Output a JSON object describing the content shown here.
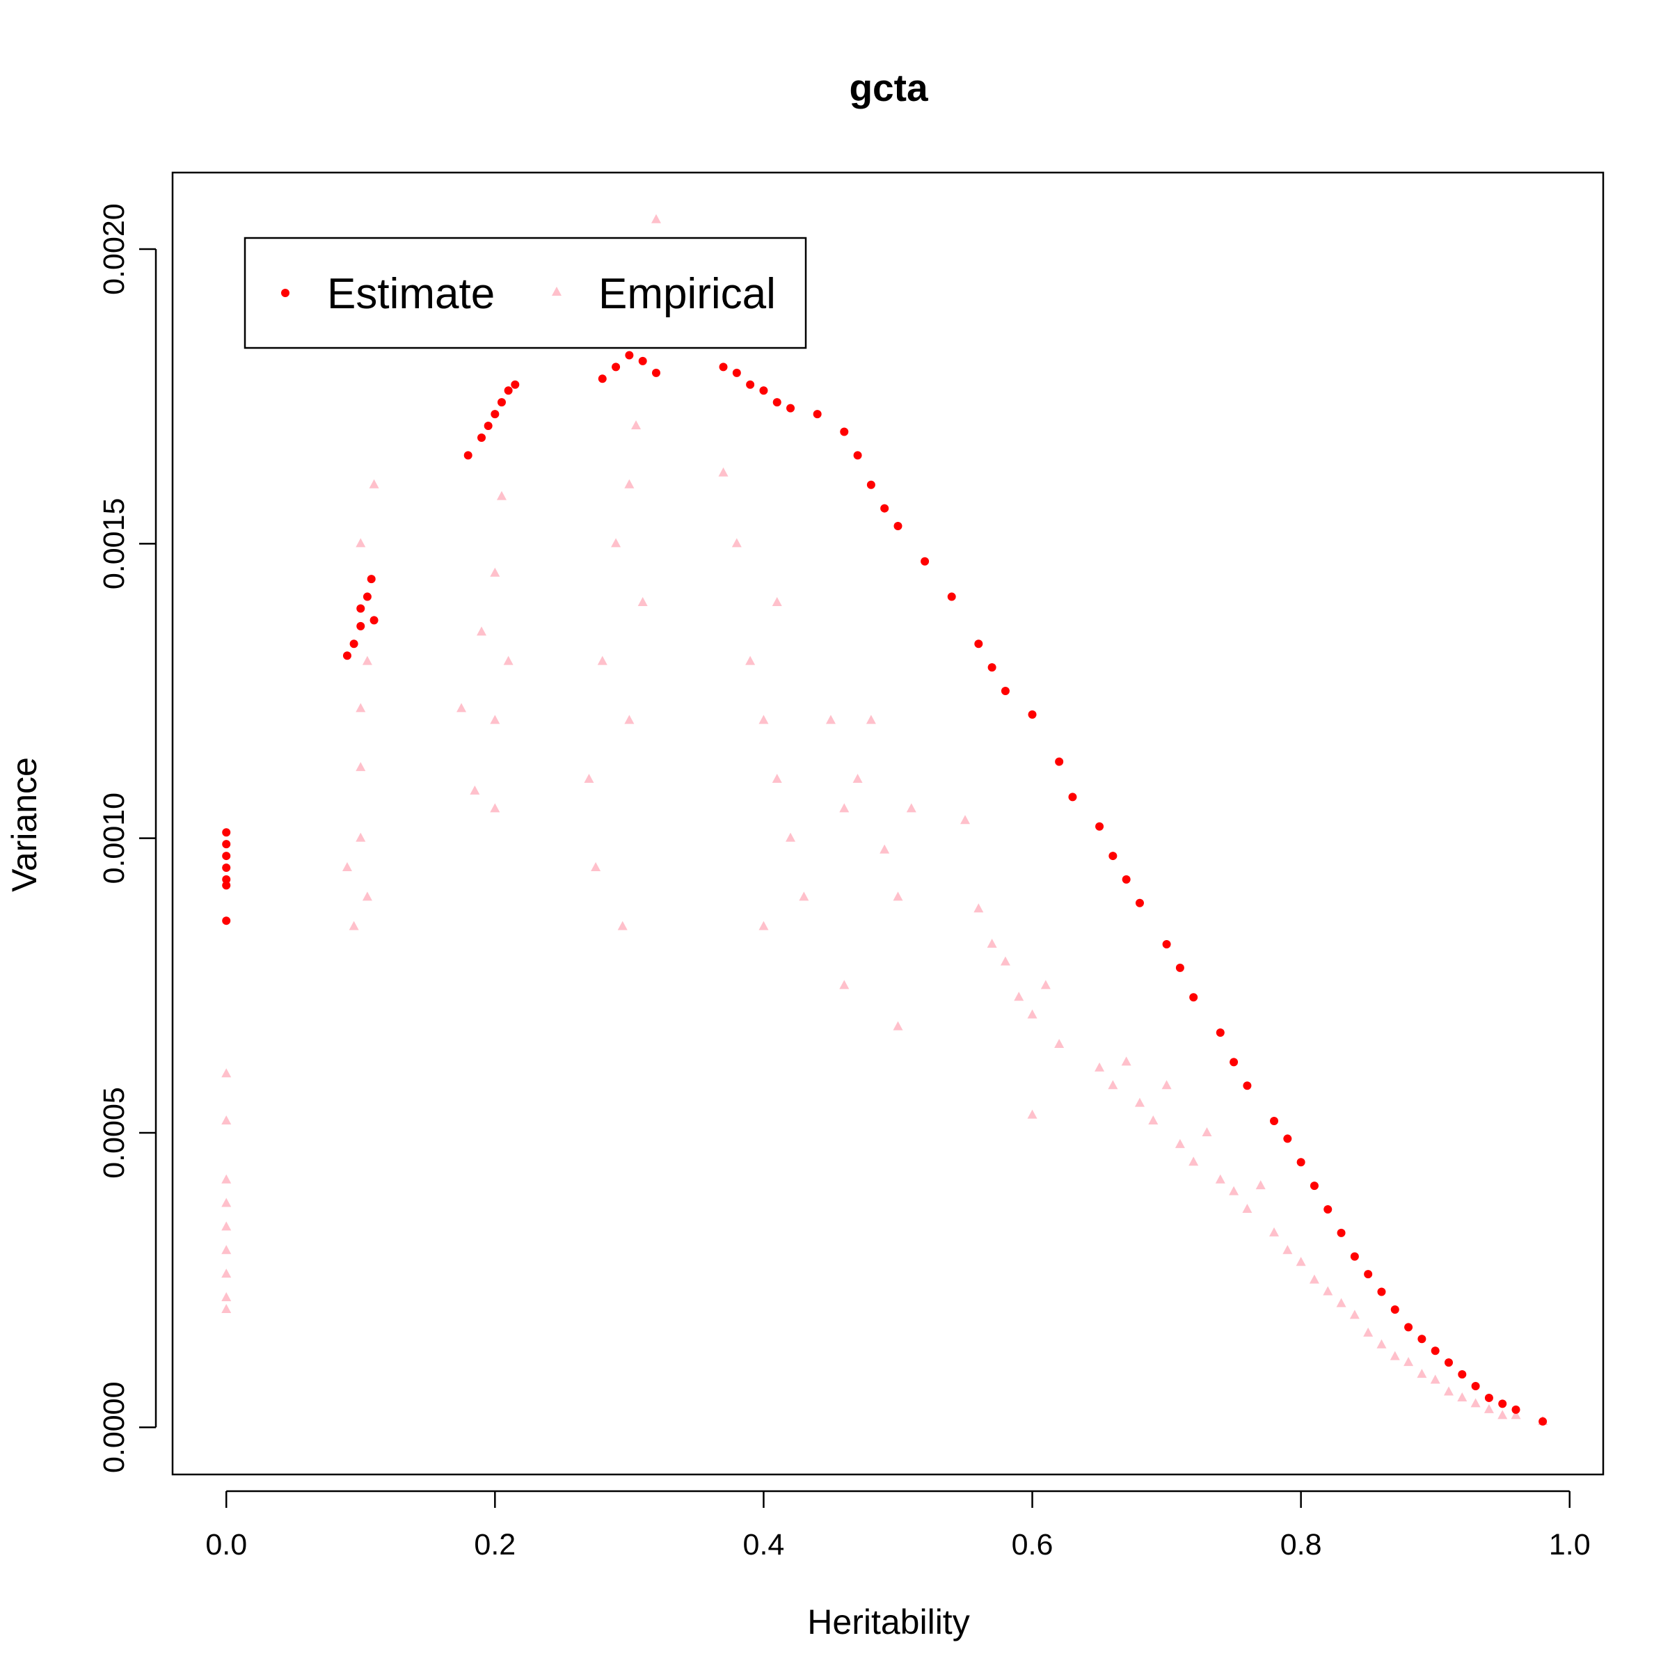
{
  "chart_data": {
    "type": "scatter",
    "title": "gcta",
    "xlabel": "Heritability",
    "ylabel": "Variance",
    "xlim": [
      -0.04,
      1.025
    ],
    "ylim": [
      -8e-05,
      0.00213
    ],
    "x_ticks": [
      "0.0",
      "0.2",
      "0.4",
      "0.6",
      "0.8",
      "1.0"
    ],
    "y_ticks": [
      "0.0000",
      "0.0005",
      "0.0010",
      "0.0015",
      "0.0020"
    ],
    "grid": false,
    "legend": {
      "position": "top-left",
      "entries": [
        {
          "label": "Estimate",
          "color": "#ff0000",
          "marker": "circle"
        },
        {
          "label": "Empirical",
          "color": "#ffc0cb",
          "marker": "triangle"
        }
      ]
    },
    "series": [
      {
        "name": "Estimate",
        "color": "#ff0000",
        "marker": "circle",
        "points": [
          [
            0.0,
            0.00101
          ],
          [
            0.0,
            0.00099
          ],
          [
            0.0,
            0.00097
          ],
          [
            0.0,
            0.00095
          ],
          [
            0.0,
            0.00093
          ],
          [
            0.0,
            0.00092
          ],
          [
            0.0,
            0.00086
          ],
          [
            0.09,
            0.00131
          ],
          [
            0.095,
            0.00133
          ],
          [
            0.1,
            0.00136
          ],
          [
            0.1,
            0.00139
          ],
          [
            0.105,
            0.00141
          ],
          [
            0.108,
            0.00144
          ],
          [
            0.11,
            0.00137
          ],
          [
            0.18,
            0.00165
          ],
          [
            0.19,
            0.00168
          ],
          [
            0.195,
            0.0017
          ],
          [
            0.2,
            0.00172
          ],
          [
            0.205,
            0.00174
          ],
          [
            0.21,
            0.00176
          ],
          [
            0.215,
            0.00177
          ],
          [
            0.28,
            0.00178
          ],
          [
            0.29,
            0.0018
          ],
          [
            0.3,
            0.00182
          ],
          [
            0.31,
            0.00181
          ],
          [
            0.32,
            0.00179
          ],
          [
            0.37,
            0.0018
          ],
          [
            0.38,
            0.00179
          ],
          [
            0.39,
            0.00177
          ],
          [
            0.4,
            0.00176
          ],
          [
            0.41,
            0.00174
          ],
          [
            0.42,
            0.00173
          ],
          [
            0.44,
            0.00172
          ],
          [
            0.46,
            0.00169
          ],
          [
            0.47,
            0.00165
          ],
          [
            0.48,
            0.0016
          ],
          [
            0.49,
            0.00156
          ],
          [
            0.5,
            0.00153
          ],
          [
            0.52,
            0.00147
          ],
          [
            0.54,
            0.00141
          ],
          [
            0.56,
            0.00133
          ],
          [
            0.57,
            0.00129
          ],
          [
            0.58,
            0.00125
          ],
          [
            0.6,
            0.00121
          ],
          [
            0.62,
            0.00113
          ],
          [
            0.63,
            0.00107
          ],
          [
            0.65,
            0.00102
          ],
          [
            0.66,
            0.00097
          ],
          [
            0.67,
            0.00093
          ],
          [
            0.68,
            0.00089
          ],
          [
            0.7,
            0.00082
          ],
          [
            0.71,
            0.00078
          ],
          [
            0.72,
            0.00073
          ],
          [
            0.74,
            0.00067
          ],
          [
            0.75,
            0.00062
          ],
          [
            0.76,
            0.00058
          ],
          [
            0.78,
            0.00052
          ],
          [
            0.79,
            0.00049
          ],
          [
            0.8,
            0.00045
          ],
          [
            0.81,
            0.00041
          ],
          [
            0.82,
            0.00037
          ],
          [
            0.83,
            0.00033
          ],
          [
            0.84,
            0.00029
          ],
          [
            0.85,
            0.00026
          ],
          [
            0.86,
            0.00023
          ],
          [
            0.87,
            0.0002
          ],
          [
            0.88,
            0.00017
          ],
          [
            0.89,
            0.00015
          ],
          [
            0.9,
            0.00013
          ],
          [
            0.91,
            0.00011
          ],
          [
            0.92,
            9e-05
          ],
          [
            0.93,
            7e-05
          ],
          [
            0.94,
            5e-05
          ],
          [
            0.95,
            4e-05
          ],
          [
            0.96,
            3e-05
          ],
          [
            0.98,
            1e-05
          ]
        ]
      },
      {
        "name": "Empirical",
        "color": "#ffc0cb",
        "marker": "triangle",
        "points": [
          [
            0.0,
            0.0006
          ],
          [
            0.0,
            0.00052
          ],
          [
            0.0,
            0.00042
          ],
          [
            0.0,
            0.00038
          ],
          [
            0.0,
            0.00034
          ],
          [
            0.0,
            0.0003
          ],
          [
            0.0,
            0.00026
          ],
          [
            0.0,
            0.00022
          ],
          [
            0.0,
            0.0002
          ],
          [
            0.09,
            0.00095
          ],
          [
            0.095,
            0.00085
          ],
          [
            0.1,
            0.001
          ],
          [
            0.1,
            0.00112
          ],
          [
            0.1,
            0.00122
          ],
          [
            0.105,
            0.0013
          ],
          [
            0.1,
            0.0015
          ],
          [
            0.11,
            0.0016
          ],
          [
            0.105,
            0.0009
          ],
          [
            0.175,
            0.00122
          ],
          [
            0.185,
            0.00108
          ],
          [
            0.19,
            0.00135
          ],
          [
            0.2,
            0.00145
          ],
          [
            0.205,
            0.00158
          ],
          [
            0.2,
            0.0012
          ],
          [
            0.21,
            0.0013
          ],
          [
            0.2,
            0.00105
          ],
          [
            0.27,
            0.0011
          ],
          [
            0.28,
            0.0013
          ],
          [
            0.29,
            0.0015
          ],
          [
            0.3,
            0.0016
          ],
          [
            0.305,
            0.0017
          ],
          [
            0.31,
            0.0014
          ],
          [
            0.3,
            0.0012
          ],
          [
            0.295,
            0.00085
          ],
          [
            0.275,
            0.00095
          ],
          [
            0.32,
            0.00205
          ],
          [
            0.37,
            0.00162
          ],
          [
            0.38,
            0.0015
          ],
          [
            0.39,
            0.0013
          ],
          [
            0.4,
            0.0012
          ],
          [
            0.41,
            0.0011
          ],
          [
            0.42,
            0.001
          ],
          [
            0.4,
            0.00085
          ],
          [
            0.41,
            0.0014
          ],
          [
            0.43,
            0.0009
          ],
          [
            0.45,
            0.0012
          ],
          [
            0.46,
            0.00105
          ],
          [
            0.47,
            0.0011
          ],
          [
            0.48,
            0.0012
          ],
          [
            0.49,
            0.00098
          ],
          [
            0.5,
            0.0009
          ],
          [
            0.51,
            0.00105
          ],
          [
            0.5,
            0.00068
          ],
          [
            0.46,
            0.00075
          ],
          [
            0.55,
            0.00103
          ],
          [
            0.56,
            0.00088
          ],
          [
            0.57,
            0.00082
          ],
          [
            0.58,
            0.00079
          ],
          [
            0.59,
            0.00073
          ],
          [
            0.6,
            0.0007
          ],
          [
            0.61,
            0.00075
          ],
          [
            0.62,
            0.00065
          ],
          [
            0.6,
            0.00053
          ],
          [
            0.65,
            0.00061
          ],
          [
            0.66,
            0.00058
          ],
          [
            0.67,
            0.00062
          ],
          [
            0.68,
            0.00055
          ],
          [
            0.69,
            0.00052
          ],
          [
            0.7,
            0.00058
          ],
          [
            0.71,
            0.00048
          ],
          [
            0.72,
            0.00045
          ],
          [
            0.73,
            0.0005
          ],
          [
            0.74,
            0.00042
          ],
          [
            0.75,
            0.0004
          ],
          [
            0.76,
            0.00037
          ],
          [
            0.77,
            0.00041
          ],
          [
            0.78,
            0.00033
          ],
          [
            0.79,
            0.0003
          ],
          [
            0.8,
            0.00028
          ],
          [
            0.81,
            0.00025
          ],
          [
            0.82,
            0.00023
          ],
          [
            0.83,
            0.00021
          ],
          [
            0.84,
            0.00019
          ],
          [
            0.85,
            0.00016
          ],
          [
            0.86,
            0.00014
          ],
          [
            0.87,
            0.00012
          ],
          [
            0.88,
            0.00011
          ],
          [
            0.89,
            9e-05
          ],
          [
            0.9,
            8e-05
          ],
          [
            0.91,
            6e-05
          ],
          [
            0.92,
            5e-05
          ],
          [
            0.93,
            4e-05
          ],
          [
            0.94,
            3e-05
          ],
          [
            0.95,
            2e-05
          ],
          [
            0.96,
            2e-05
          ],
          [
            0.98,
            1e-05
          ]
        ]
      }
    ]
  }
}
